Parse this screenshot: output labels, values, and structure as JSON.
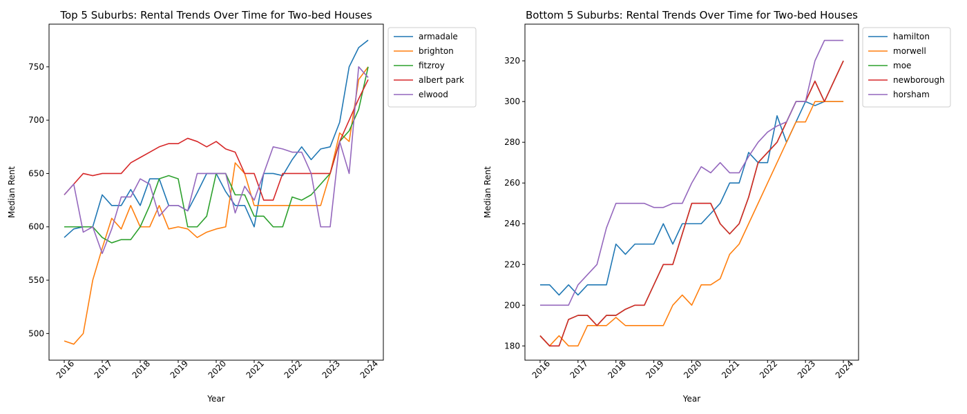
{
  "chart_data": [
    {
      "type": "line",
      "title": "Top 5 Suburbs: Rental Trends Over Time for Two-bed Houses",
      "xlabel": "Year",
      "ylabel": "Median Rent",
      "xlim": [
        2015.6,
        2024.4
      ],
      "ylim": [
        475,
        790
      ],
      "xticks": [
        2016,
        2017,
        2018,
        2019,
        2020,
        2021,
        2022,
        2023,
        2024
      ],
      "yticks": [
        500,
        550,
        600,
        650,
        700,
        750
      ],
      "legend_position": "outside-top-right",
      "x": [
        2016,
        2016.25,
        2016.5,
        2016.75,
        2017,
        2017.25,
        2017.5,
        2017.75,
        2018,
        2018.25,
        2018.5,
        2018.75,
        2019,
        2019.25,
        2019.5,
        2019.75,
        2020,
        2020.25,
        2020.5,
        2020.75,
        2021,
        2021.25,
        2021.5,
        2021.75,
        2022,
        2022.25,
        2022.5,
        2022.75,
        2023,
        2023.25,
        2023.5,
        2023.75,
        2024
      ],
      "series": [
        {
          "name": "armadale",
          "color": "#1f77b4",
          "values": [
            590,
            598,
            600,
            600,
            630,
            620,
            620,
            635,
            620,
            645,
            645,
            620,
            620,
            615,
            632,
            650,
            650,
            633,
            620,
            620,
            600,
            650,
            650,
            648,
            663,
            675,
            663,
            673,
            675,
            698,
            750,
            768,
            775
          ]
        },
        {
          "name": "brighton",
          "color": "#ff7f0e",
          "values": [
            493,
            490,
            500,
            550,
            580,
            608,
            598,
            620,
            600,
            600,
            620,
            598,
            600,
            598,
            590,
            595,
            598,
            600,
            660,
            650,
            620,
            620,
            620,
            620,
            620,
            620,
            620,
            620,
            650,
            688,
            680,
            738,
            750
          ]
        },
        {
          "name": "fitzroy",
          "color": "#2ca02c",
          "values": [
            600,
            600,
            600,
            600,
            590,
            585,
            588,
            588,
            600,
            620,
            645,
            648,
            645,
            600,
            600,
            610,
            650,
            650,
            630,
            630,
            610,
            610,
            600,
            600,
            628,
            625,
            630,
            640,
            650,
            680,
            690,
            710,
            750
          ]
        },
        {
          "name": "albert park",
          "color": "#d62728",
          "values": [
            630,
            640,
            650,
            648,
            650,
            650,
            650,
            660,
            665,
            670,
            675,
            678,
            678,
            683,
            680,
            675,
            680,
            673,
            670,
            650,
            650,
            625,
            625,
            650,
            650,
            650,
            650,
            650,
            650,
            680,
            700,
            720,
            738
          ]
        },
        {
          "name": "elwood",
          "color": "#9467bd",
          "values": [
            630,
            640,
            595,
            600,
            575,
            598,
            628,
            628,
            645,
            640,
            610,
            620,
            620,
            615,
            650,
            650,
            650,
            650,
            613,
            638,
            625,
            650,
            675,
            673,
            670,
            670,
            650,
            600,
            600,
            680,
            650,
            750,
            740
          ]
        }
      ]
    },
    {
      "type": "line",
      "title": "Bottom 5 Suburbs: Rental Trends Over Time for Two-bed Houses",
      "xlabel": "Year",
      "ylabel": "Median Rent",
      "xlim": [
        2015.6,
        2024.4
      ],
      "ylim": [
        173,
        338
      ],
      "xticks": [
        2016,
        2017,
        2018,
        2019,
        2020,
        2021,
        2022,
        2023,
        2024
      ],
      "yticks": [
        180,
        200,
        220,
        240,
        260,
        280,
        300,
        320
      ],
      "legend_position": "outside-top-right",
      "x": [
        2016,
        2016.25,
        2016.5,
        2016.75,
        2017,
        2017.25,
        2017.5,
        2017.75,
        2018,
        2018.25,
        2018.5,
        2018.75,
        2019,
        2019.25,
        2019.5,
        2019.75,
        2020,
        2020.25,
        2020.5,
        2020.75,
        2021,
        2021.25,
        2021.5,
        2021.75,
        2022,
        2022.25,
        2022.5,
        2022.75,
        2023,
        2023.25,
        2023.5,
        2023.75,
        2024
      ],
      "series": [
        {
          "name": "hamilton",
          "color": "#1f77b4",
          "values": [
            210,
            210,
            205,
            210,
            205,
            210,
            210,
            210,
            230,
            225,
            230,
            230,
            230,
            240,
            230,
            240,
            240,
            240,
            245,
            250,
            260,
            260,
            275,
            270,
            270,
            293,
            280,
            290,
            300,
            298,
            300,
            300,
            300
          ]
        },
        {
          "name": "morwell",
          "color": "#ff7f0e",
          "values": [
            185,
            180,
            185,
            180,
            180,
            190,
            190,
            190,
            194,
            190,
            190,
            190,
            190,
            190,
            200,
            205,
            200,
            210,
            210,
            213,
            225,
            230,
            240,
            250,
            260,
            270,
            280,
            290,
            290,
            300,
            300,
            300,
            300
          ]
        },
        {
          "name": "moe",
          "color": "#2ca02c",
          "values": [
            185,
            180,
            180,
            193,
            195,
            195,
            190,
            195,
            195,
            198,
            200,
            200,
            210,
            220,
            220,
            235,
            250,
            250,
            250,
            240,
            235,
            240,
            253,
            270,
            275,
            280,
            290,
            300,
            300,
            310,
            300,
            310,
            320
          ]
        },
        {
          "name": "newborough",
          "color": "#d62728",
          "values": [
            185,
            180,
            180,
            193,
            195,
            195,
            190,
            195,
            195,
            198,
            200,
            200,
            210,
            220,
            220,
            235,
            250,
            250,
            250,
            240,
            235,
            240,
            253,
            270,
            275,
            280,
            290,
            300,
            300,
            310,
            300,
            310,
            320
          ]
        },
        {
          "name": "horsham",
          "color": "#9467bd",
          "values": [
            200,
            200,
            200,
            200,
            210,
            215,
            220,
            238,
            250,
            250,
            250,
            250,
            248,
            248,
            250,
            250,
            260,
            268,
            265,
            270,
            265,
            265,
            273,
            280,
            285,
            288,
            290,
            300,
            300,
            320,
            330,
            330,
            330
          ]
        }
      ]
    }
  ]
}
